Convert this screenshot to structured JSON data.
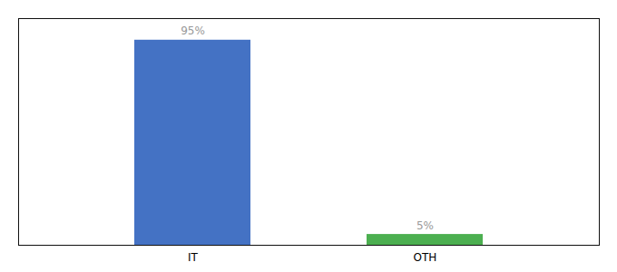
{
  "chart_data": {
    "type": "bar",
    "categories": [
      "IT",
      "OTH"
    ],
    "values": [
      95,
      5
    ],
    "value_labels": [
      "95%",
      "5%"
    ],
    "colors": [
      "#4472c4",
      "#4caf50"
    ],
    "ylim": [
      0,
      105
    ],
    "yticks": [],
    "data_labels": true,
    "tick_labels": "x",
    "grid": false
  }
}
